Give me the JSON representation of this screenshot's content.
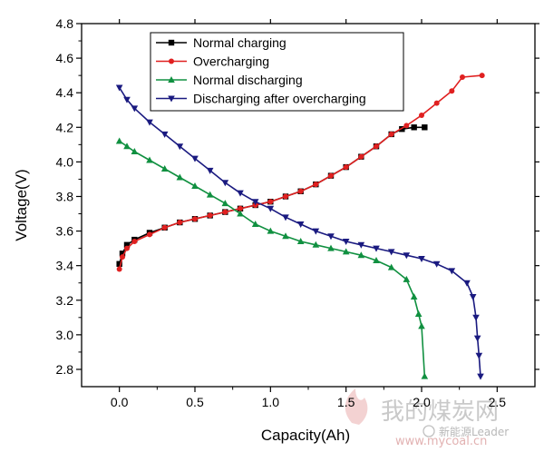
{
  "chart_data": {
    "type": "line",
    "xlabel": "Capacity(Ah)",
    "ylabel": "Voltage(V)",
    "xlim": [
      -0.25,
      2.75
    ],
    "ylim": [
      2.7,
      4.8
    ],
    "x_ticks": [
      "0.0",
      "0.5",
      "1.0",
      "1.5",
      "2.0",
      "2.5"
    ],
    "y_ticks": [
      "2.8",
      "3.0",
      "3.2",
      "3.4",
      "3.6",
      "3.8",
      "4.0",
      "4.2",
      "4.4",
      "4.6",
      "4.8"
    ],
    "grid": false,
    "legend_position": "top-center",
    "series": [
      {
        "name": "Normal charging",
        "color": "#000000",
        "marker": "square",
        "points": [
          [
            0.0,
            3.41
          ],
          [
            0.02,
            3.47
          ],
          [
            0.05,
            3.52
          ],
          [
            0.1,
            3.55
          ],
          [
            0.2,
            3.59
          ],
          [
            0.3,
            3.62
          ],
          [
            0.4,
            3.65
          ],
          [
            0.5,
            3.67
          ],
          [
            0.6,
            3.69
          ],
          [
            0.7,
            3.71
          ],
          [
            0.8,
            3.73
          ],
          [
            0.9,
            3.75
          ],
          [
            1.0,
            3.77
          ],
          [
            1.1,
            3.8
          ],
          [
            1.2,
            3.83
          ],
          [
            1.3,
            3.87
          ],
          [
            1.4,
            3.92
          ],
          [
            1.5,
            3.97
          ],
          [
            1.6,
            4.03
          ],
          [
            1.7,
            4.09
          ],
          [
            1.8,
            4.16
          ],
          [
            1.87,
            4.19
          ],
          [
            1.95,
            4.2
          ],
          [
            2.02,
            4.2
          ]
        ]
      },
      {
        "name": "Overcharging",
        "color": "#e02020",
        "marker": "circle",
        "points": [
          [
            0.0,
            3.38
          ],
          [
            0.02,
            3.45
          ],
          [
            0.05,
            3.5
          ],
          [
            0.1,
            3.54
          ],
          [
            0.2,
            3.58
          ],
          [
            0.3,
            3.62
          ],
          [
            0.4,
            3.65
          ],
          [
            0.5,
            3.67
          ],
          [
            0.6,
            3.69
          ],
          [
            0.7,
            3.71
          ],
          [
            0.8,
            3.73
          ],
          [
            0.9,
            3.75
          ],
          [
            1.0,
            3.77
          ],
          [
            1.1,
            3.8
          ],
          [
            1.2,
            3.83
          ],
          [
            1.3,
            3.87
          ],
          [
            1.4,
            3.92
          ],
          [
            1.5,
            3.97
          ],
          [
            1.6,
            4.03
          ],
          [
            1.7,
            4.09
          ],
          [
            1.8,
            4.16
          ],
          [
            1.9,
            4.21
          ],
          [
            2.0,
            4.27
          ],
          [
            2.1,
            4.34
          ],
          [
            2.2,
            4.41
          ],
          [
            2.27,
            4.49
          ],
          [
            2.4,
            4.5
          ]
        ]
      },
      {
        "name": "Normal discharging",
        "color": "#109040",
        "marker": "triangle-up",
        "points": [
          [
            0.0,
            4.12
          ],
          [
            0.05,
            4.09
          ],
          [
            0.1,
            4.06
          ],
          [
            0.2,
            4.01
          ],
          [
            0.3,
            3.96
          ],
          [
            0.4,
            3.91
          ],
          [
            0.5,
            3.86
          ],
          [
            0.6,
            3.81
          ],
          [
            0.7,
            3.76
          ],
          [
            0.8,
            3.7
          ],
          [
            0.9,
            3.64
          ],
          [
            1.0,
            3.6
          ],
          [
            1.1,
            3.57
          ],
          [
            1.2,
            3.54
          ],
          [
            1.3,
            3.52
          ],
          [
            1.4,
            3.5
          ],
          [
            1.5,
            3.48
          ],
          [
            1.6,
            3.46
          ],
          [
            1.7,
            3.43
          ],
          [
            1.8,
            3.39
          ],
          [
            1.9,
            3.32
          ],
          [
            1.95,
            3.22
          ],
          [
            1.98,
            3.12
          ],
          [
            2.0,
            3.05
          ],
          [
            2.02,
            2.76
          ]
        ]
      },
      {
        "name": "Discharging after overcharging",
        "color": "#1a1a80",
        "marker": "triangle-down",
        "points": [
          [
            0.0,
            4.43
          ],
          [
            0.05,
            4.36
          ],
          [
            0.1,
            4.31
          ],
          [
            0.2,
            4.23
          ],
          [
            0.3,
            4.16
          ],
          [
            0.4,
            4.09
          ],
          [
            0.5,
            4.02
          ],
          [
            0.6,
            3.95
          ],
          [
            0.7,
            3.88
          ],
          [
            0.8,
            3.82
          ],
          [
            0.9,
            3.77
          ],
          [
            1.0,
            3.73
          ],
          [
            1.1,
            3.68
          ],
          [
            1.2,
            3.64
          ],
          [
            1.3,
            3.6
          ],
          [
            1.4,
            3.57
          ],
          [
            1.5,
            3.54
          ],
          [
            1.6,
            3.52
          ],
          [
            1.7,
            3.5
          ],
          [
            1.8,
            3.48
          ],
          [
            1.9,
            3.46
          ],
          [
            2.0,
            3.44
          ],
          [
            2.1,
            3.41
          ],
          [
            2.2,
            3.37
          ],
          [
            2.3,
            3.3
          ],
          [
            2.34,
            3.22
          ],
          [
            2.36,
            3.1
          ],
          [
            2.37,
            2.98
          ],
          [
            2.38,
            2.88
          ],
          [
            2.39,
            2.76
          ]
        ]
      }
    ]
  },
  "watermark": {
    "site_cn": "我的煤炭网",
    "leader": "新能源Leader",
    "url": "www.mycoal.cn"
  }
}
